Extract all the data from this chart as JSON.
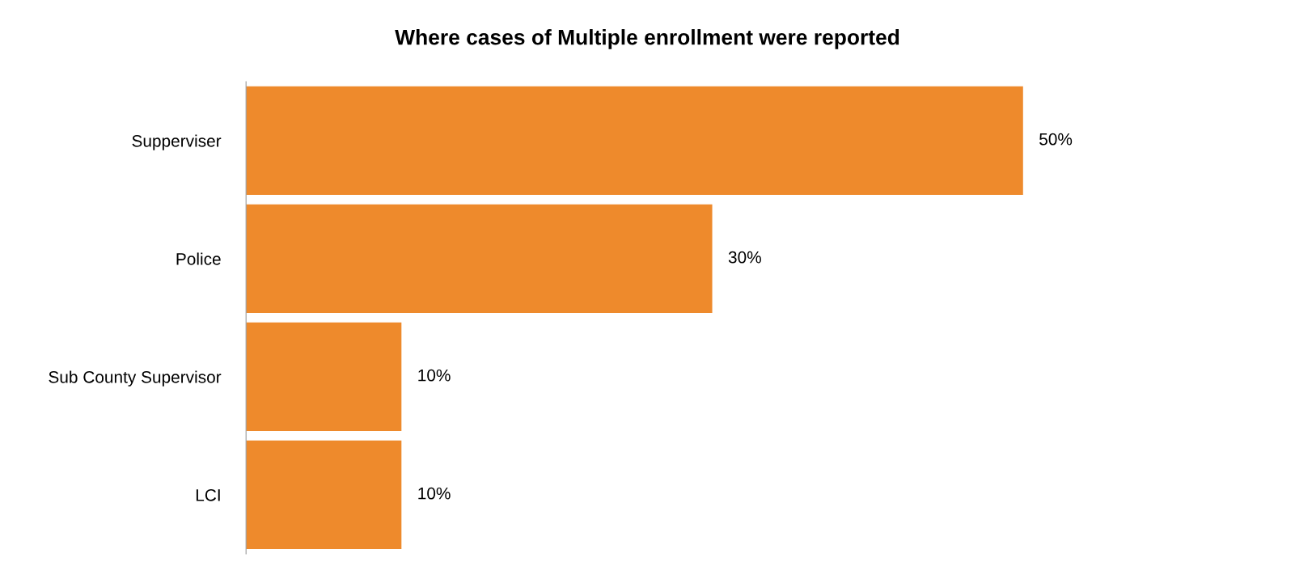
{
  "chart_data": {
    "type": "bar",
    "orientation": "horizontal",
    "title": "Where cases of Multiple enrollment were reported",
    "categories": [
      "Supperviser",
      "Police",
      "Sub County Supervisor",
      "LCI"
    ],
    "values": [
      50,
      30,
      10,
      10
    ],
    "value_labels": [
      "50%",
      "30%",
      "10%",
      "10%"
    ],
    "color": "#ee8a2c"
  }
}
